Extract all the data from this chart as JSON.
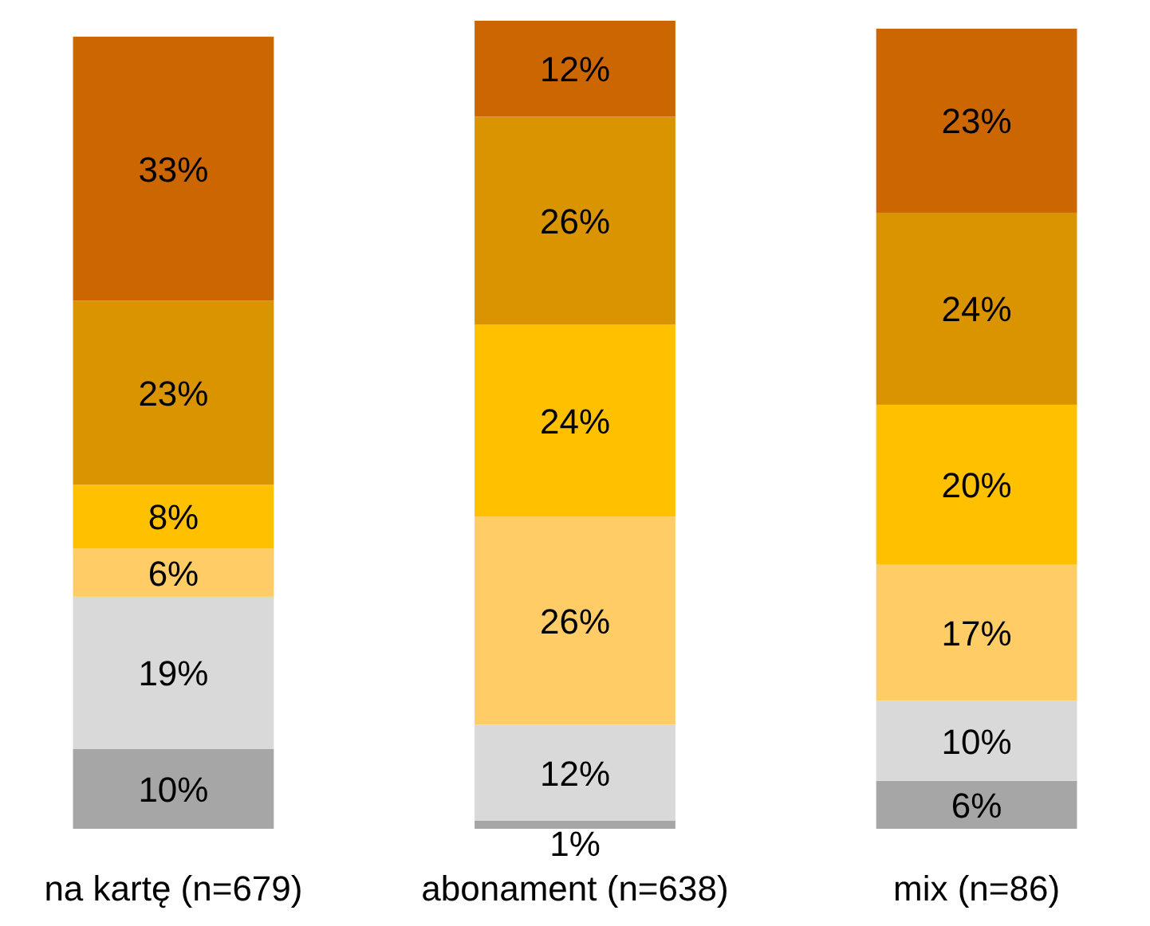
{
  "chart_data": {
    "type": "bar",
    "stacked": true,
    "categories": [
      "na kartę (n=679)",
      "abonament (n=638)",
      "mix (n=86)"
    ],
    "series": [
      {
        "color": "#a6a6a6",
        "values": [
          10,
          1,
          6
        ],
        "value_labels": [
          "10%",
          "1%",
          "6%"
        ]
      },
      {
        "color": "#d9d9d9",
        "values": [
          19,
          12,
          10
        ],
        "value_labels": [
          "19%",
          "12%",
          "10%"
        ]
      },
      {
        "color": "#ffcc66",
        "values": [
          6,
          26,
          17
        ],
        "value_labels": [
          "6%",
          "26%",
          "17%"
        ]
      },
      {
        "color": "#ffc000",
        "values": [
          8,
          24,
          20
        ],
        "value_labels": [
          "8%",
          "24%",
          "20%"
        ]
      },
      {
        "color": "#d99400",
        "values": [
          23,
          26,
          24
        ],
        "value_labels": [
          "23%",
          "26%",
          "24%"
        ]
      },
      {
        "color": "#cc6600",
        "values": [
          33,
          12,
          23
        ],
        "value_labels": [
          "33%",
          "12%",
          "23%"
        ]
      }
    ]
  }
}
